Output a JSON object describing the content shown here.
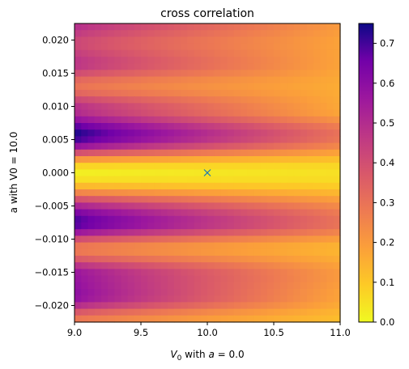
{
  "chart_data": {
    "type": "heatmap",
    "title": "cross correlation",
    "xlabel_parts": {
      "var": "V",
      "sub": "0",
      "rest": " with ",
      "var2": "a",
      "eq": " = 0.0"
    },
    "ylabel": "a with V0 = 10.0",
    "xlim": [
      9.0,
      11.0
    ],
    "ylim": [
      -0.0225,
      0.0225
    ],
    "x_ticks": [
      "9.0",
      "9.5",
      "10.0",
      "10.5",
      "11.0"
    ],
    "x_tick_values": [
      9.0,
      9.5,
      10.0,
      10.5,
      11.0
    ],
    "y_ticks": [
      "0.020",
      "0.015",
      "0.010",
      "0.005",
      "0.000",
      "−0.005",
      "−0.010",
      "−0.015",
      "−0.020"
    ],
    "y_tick_values": [
      0.02,
      0.015,
      0.01,
      0.005,
      0.0,
      -0.005,
      -0.01,
      -0.015,
      -0.02
    ],
    "colorbar": {
      "min": 0.0,
      "max": 0.75,
      "colormap": "plasma_r",
      "ticks": [
        "0.0",
        "0.1",
        "0.2",
        "0.3",
        "0.4",
        "0.5",
        "0.6",
        "0.7"
      ],
      "tick_values": [
        0.0,
        0.1,
        0.2,
        0.3,
        0.4,
        0.5,
        0.6,
        0.7
      ]
    },
    "marker": {
      "x": 10.0,
      "y": 0.0,
      "symbol": "x",
      "color": "#1f77b4"
    },
    "grid": {
      "nx": 40,
      "ny": 45
    },
    "band_centers_a": [
      0.0225,
      0.0195,
      0.0165,
      0.013,
      0.0095,
      0.0058,
      0.0,
      -0.0075,
      -0.0115,
      -0.0155,
      -0.0185,
      -0.0225
    ],
    "band_values_at_x9": [
      0.5,
      0.42,
      0.48,
      0.3,
      0.5,
      0.74,
      0.02,
      0.7,
      0.28,
      0.58,
      0.6,
      0.28
    ],
    "band_values_at_x11": [
      0.2,
      0.18,
      0.18,
      0.16,
      0.17,
      0.3,
      0.05,
      0.3,
      0.14,
      0.2,
      0.18,
      0.12
    ]
  }
}
